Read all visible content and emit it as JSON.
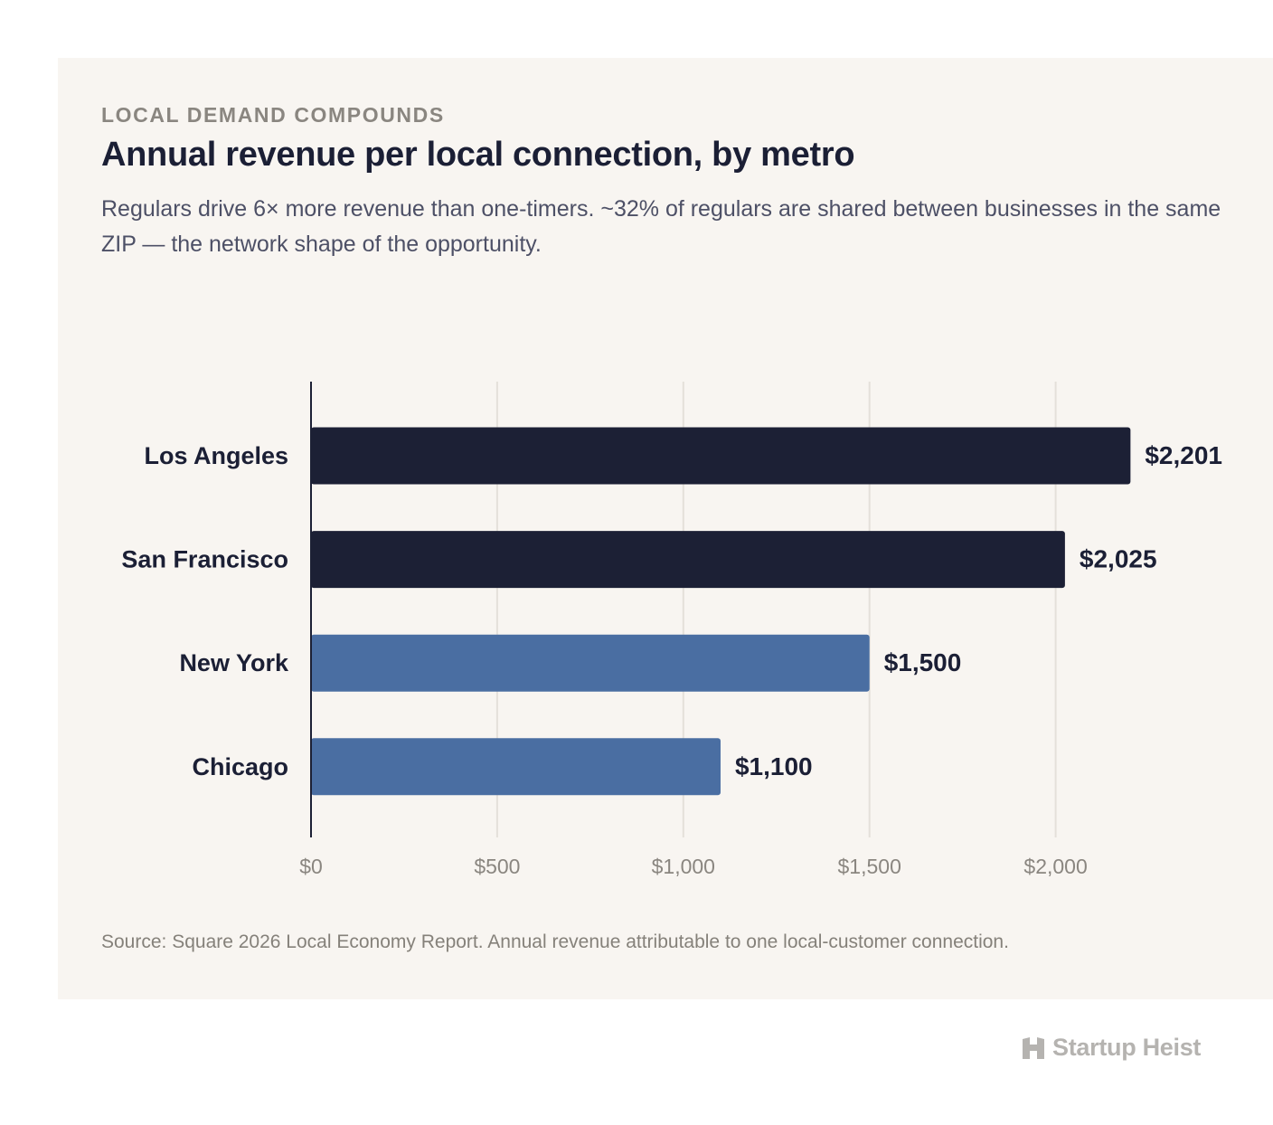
{
  "header": {
    "eyebrow": "LOCAL DEMAND COMPOUNDS",
    "title": "Annual revenue per local connection, by metro",
    "subtitle": "Regulars drive 6× more revenue than one-timers. ~32% of regulars are shared between businesses in the same ZIP — the network shape of the opportunity."
  },
  "footer": {
    "source": "Source: Square 2026 Local Economy Report. Annual revenue attributable to one local-customer connection."
  },
  "brand": {
    "name": "Startup Heist",
    "icon": "building-logo-icon"
  },
  "chart_data": {
    "type": "bar",
    "orientation": "horizontal",
    "categories": [
      "Los Angeles",
      "San Francisco",
      "New York",
      "Chicago"
    ],
    "values": [
      2201,
      2025,
      1500,
      1100
    ],
    "value_labels": [
      "$2,201",
      "$2,025",
      "$1,500",
      "$1,100"
    ],
    "bar_colors": [
      "#1c2035",
      "#1c2035",
      "#4a6ea2",
      "#4a6ea2"
    ],
    "xticks": [
      0,
      500,
      1000,
      1500,
      2000
    ],
    "xtick_labels": [
      "$0",
      "$500",
      "$1,000",
      "$1,500",
      "$2,000"
    ],
    "xlim": [
      0,
      2201
    ],
    "grid": true,
    "colors": {
      "grid": "#e4e0da",
      "axis": "#1c2035",
      "tick_text": "#8a8680",
      "category_text": "#1b1f35",
      "value_text": "#1b1f35"
    }
  }
}
